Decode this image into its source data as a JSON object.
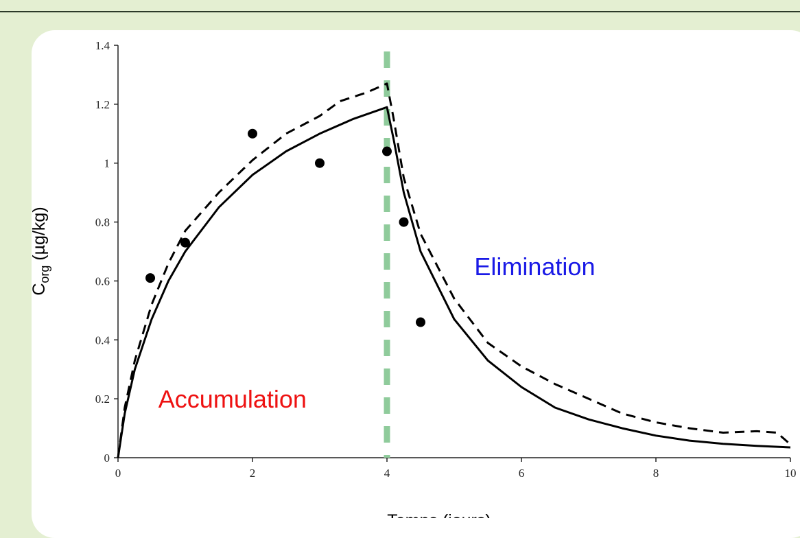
{
  "chart_data": {
    "type": "line",
    "xlabel": "Temps (jours)",
    "ylabel_main": "C",
    "ylabel_sub": "org",
    "ylabel_unit": " (µg/kg)",
    "xlim": [
      0,
      10
    ],
    "ylim": [
      0,
      1.4
    ],
    "x_ticks": [
      0,
      2,
      4,
      6,
      8,
      10
    ],
    "x_tick_labels": [
      "0",
      "2",
      "4",
      "6",
      "8",
      "10"
    ],
    "y_ticks": [
      0,
      0.2,
      0.4,
      0.6,
      0.8,
      1.0,
      1.2,
      1.4
    ],
    "y_tick_labels": [
      "0",
      "0.2",
      "0.4",
      "0.6",
      "0.8",
      "1",
      "1.2",
      "1.4"
    ],
    "grid": false,
    "phase_boundary_x": 4,
    "boundary_color": "#8fcb9b",
    "annotations": [
      {
        "text": "Accumulation",
        "color": "#ee1111",
        "x": 0.6,
        "y": 0.17
      },
      {
        "text": "Elimination",
        "color": "#1a1ae6",
        "x": 5.3,
        "y": 0.62
      }
    ],
    "series": [
      {
        "style": "solid",
        "points": [
          [
            0,
            0
          ],
          [
            0.1,
            0.15
          ],
          [
            0.25,
            0.3
          ],
          [
            0.5,
            0.47
          ],
          [
            0.75,
            0.6
          ],
          [
            1,
            0.7
          ],
          [
            1.5,
            0.85
          ],
          [
            2,
            0.96
          ],
          [
            2.5,
            1.04
          ],
          [
            3,
            1.1
          ],
          [
            3.5,
            1.15
          ],
          [
            4,
            1.19
          ],
          [
            4.1,
            1.08
          ],
          [
            4.25,
            0.9
          ],
          [
            4.5,
            0.7
          ],
          [
            5,
            0.47
          ],
          [
            5.5,
            0.33
          ],
          [
            6,
            0.24
          ],
          [
            6.5,
            0.17
          ],
          [
            7,
            0.13
          ],
          [
            7.5,
            0.1
          ],
          [
            8,
            0.075
          ],
          [
            8.5,
            0.058
          ],
          [
            9,
            0.047
          ],
          [
            9.5,
            0.04
          ],
          [
            10,
            0.035
          ]
        ]
      },
      {
        "style": "dashed",
        "points": [
          [
            0,
            0
          ],
          [
            0.1,
            0.17
          ],
          [
            0.25,
            0.33
          ],
          [
            0.5,
            0.52
          ],
          [
            0.75,
            0.66
          ],
          [
            1,
            0.77
          ],
          [
            1.5,
            0.9
          ],
          [
            2,
            1.01
          ],
          [
            2.5,
            1.1
          ],
          [
            3,
            1.16
          ],
          [
            3.3,
            1.21
          ],
          [
            3.7,
            1.24
          ],
          [
            4,
            1.27
          ],
          [
            4.1,
            1.15
          ],
          [
            4.25,
            0.95
          ],
          [
            4.5,
            0.76
          ],
          [
            5,
            0.54
          ],
          [
            5.5,
            0.39
          ],
          [
            6,
            0.31
          ],
          [
            6.5,
            0.25
          ],
          [
            7,
            0.2
          ],
          [
            7.5,
            0.15
          ],
          [
            8,
            0.12
          ],
          [
            8.5,
            0.1
          ],
          [
            9,
            0.085
          ],
          [
            9.5,
            0.09
          ],
          [
            9.8,
            0.085
          ],
          [
            10,
            0.045
          ]
        ]
      },
      {
        "style": "points",
        "points": [
          [
            0.48,
            0.61
          ],
          [
            1,
            0.73
          ],
          [
            2,
            1.1
          ],
          [
            3,
            1.0
          ],
          [
            4,
            1.04
          ],
          [
            4.25,
            0.8
          ],
          [
            4.5,
            0.46
          ]
        ]
      }
    ]
  }
}
